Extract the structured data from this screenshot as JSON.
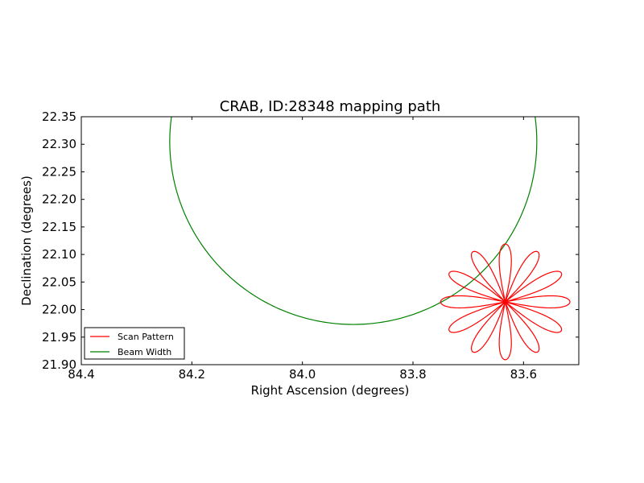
{
  "chart_data": {
    "type": "line",
    "title": "CRAB, ID:28348 mapping path",
    "xlabel": "Right Ascension (degrees)",
    "ylabel": "Declination (degrees)",
    "xlim": [
      84.4,
      83.5
    ],
    "ylim": [
      21.9,
      22.35
    ],
    "x_axis_inverted": true,
    "xticks": [
      "84.4",
      "84.2",
      "84.0",
      "83.8",
      "83.6"
    ],
    "yticks": [
      "21.90",
      "21.95",
      "22.00",
      "22.05",
      "22.10",
      "22.15",
      "22.20",
      "22.25",
      "22.30",
      "22.35"
    ],
    "grid": false,
    "legend_placement": "lower-left",
    "series": [
      {
        "name": "Scan Pattern",
        "color": "#ff0000",
        "shape": "rosette",
        "center": [
          83.633,
          22.014
        ],
        "petals": 12,
        "petal_length_ra": 0.117,
        "petal_length_dec": 0.105,
        "petal_halfwidth_deg": 0.011
      },
      {
        "name": "Beam Width",
        "color": "#008000",
        "shape": "circle",
        "center": [
          83.908,
          22.305
        ],
        "radius_ra": 0.332,
        "radius_dec": 0.332
      }
    ]
  }
}
